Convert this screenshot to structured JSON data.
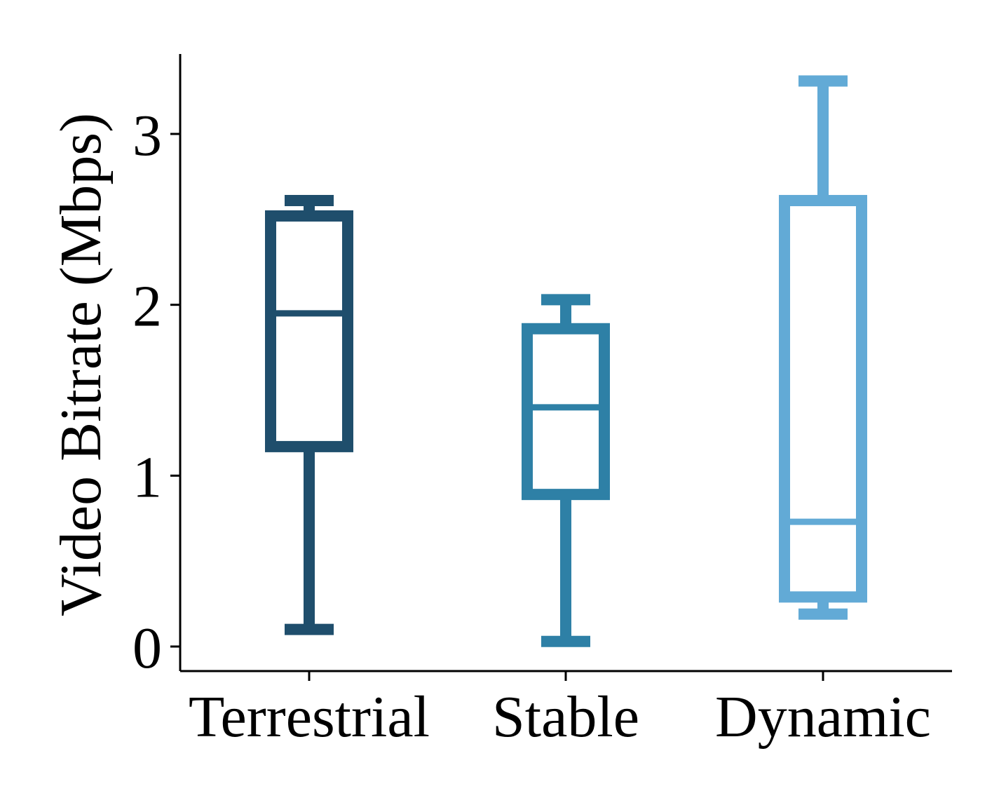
{
  "chart_data": {
    "type": "box",
    "title": "",
    "xlabel": "",
    "ylabel": "Video Bitrate (Mbps)",
    "ylim": [
      -0.15,
      3.48
    ],
    "yticks": [
      0,
      1,
      2,
      3
    ],
    "ytick_labels": [
      "0",
      "1",
      "2",
      "3"
    ],
    "grid": false,
    "legend": "none",
    "categories": [
      "Terrestrial",
      "Stable",
      "Dynamic"
    ],
    "boxes": [
      {
        "category": "Terrestrial",
        "whisker_low": 0.1,
        "q1": 1.17,
        "median": 1.95,
        "q3": 2.52,
        "whisker_high": 2.61,
        "color": "#1f4e6c"
      },
      {
        "category": "Stable",
        "whisker_low": 0.03,
        "q1": 0.89,
        "median": 1.4,
        "q3": 1.86,
        "whisker_high": 2.03,
        "color": "#2e80a6"
      },
      {
        "category": "Dynamic",
        "whisker_low": 0.19,
        "q1": 0.29,
        "median": 0.73,
        "q3": 2.61,
        "whisker_high": 3.31,
        "color": "#62aad6"
      }
    ]
  }
}
